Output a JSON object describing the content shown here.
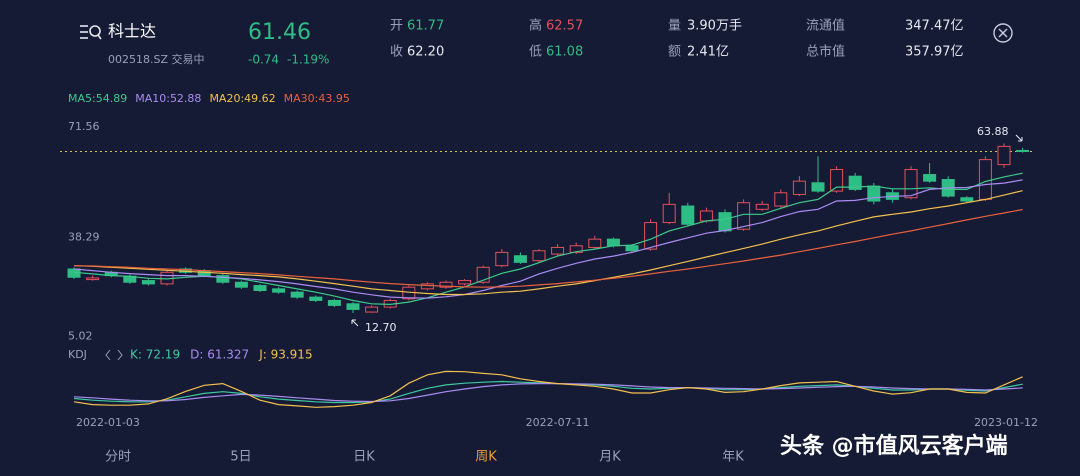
{
  "header": {
    "name": "科士达",
    "price": "61.46",
    "code": "002518.SZ 交易中",
    "change": "-0.74",
    "change_pct": "-1.19%",
    "quotes": [
      {
        "label": "开",
        "value": "61.77",
        "color": "#2ebd85"
      },
      {
        "label": "收",
        "value": "62.20",
        "color": "#e6e8f0"
      },
      {
        "label": "高",
        "value": "62.57",
        "color": "#e5505a"
      },
      {
        "label": "低",
        "value": "61.08",
        "color": "#2ebd85"
      },
      {
        "label": "量",
        "value": "3.90万手",
        "color": "#e6e8f0"
      },
      {
        "label": "额",
        "value": "2.41亿",
        "color": "#e6e8f0"
      },
      {
        "label": "流通值",
        "value": "347.47亿",
        "color": "#e6e8f0"
      },
      {
        "label": "总市值",
        "value": "357.97亿",
        "color": "#e6e8f0"
      }
    ]
  },
  "chart_data": {
    "type": "candlestick",
    "categories": [
      "2022-01-03",
      null,
      null,
      null,
      null,
      null,
      null,
      null,
      null,
      null,
      null,
      null,
      null,
      null,
      null,
      null,
      null,
      null,
      null,
      null,
      null,
      null,
      null,
      null,
      null,
      null,
      "2022-07-11",
      null,
      null,
      null,
      null,
      null,
      null,
      null,
      null,
      null,
      null,
      null,
      null,
      null,
      null,
      null,
      null,
      null,
      null,
      null,
      null,
      null,
      null,
      null,
      null,
      "2023-01-12"
    ],
    "open": [
      26,
      22.8,
      25,
      23.8,
      22.5,
      21.5,
      26,
      25.5,
      24,
      22,
      21,
      20,
      19,
      17.5,
      16.5,
      15.5,
      13,
      14.5,
      17,
      20,
      20.5,
      21.5,
      22,
      27,
      30,
      28.5,
      30.5,
      31,
      32.5,
      35,
      33,
      32,
      40,
      45,
      40.5,
      43,
      38,
      44,
      45,
      48.5,
      52,
      49.5,
      54,
      51,
      49,
      47.5,
      54.5,
      53,
      47.5,
      47,
      57.5,
      61.77
    ],
    "high": [
      26.5,
      24,
      25.5,
      24.3,
      23,
      25.5,
      26.5,
      26,
      24.5,
      22.5,
      21.5,
      20.5,
      19.5,
      18,
      17,
      16,
      15,
      17,
      21,
      22,
      22.5,
      23,
      27,
      32,
      31,
      32,
      33.5,
      34,
      36,
      35.5,
      33.5,
      41,
      49,
      46,
      44.5,
      44,
      47,
      46.5,
      50,
      54,
      60,
      57,
      55,
      52,
      50,
      57,
      58,
      54,
      48,
      60,
      63.88,
      62.57
    ],
    "low": [
      23,
      22.5,
      23.5,
      21.5,
      21,
      21,
      24.5,
      23.5,
      21.5,
      20,
      19,
      18.5,
      17,
      16,
      14.5,
      12.7,
      12.8,
      14,
      16.5,
      19.5,
      20,
      21,
      21.5,
      26.5,
      27.5,
      28,
      30,
      30.5,
      32,
      32.5,
      31,
      31.5,
      39.5,
      39,
      40,
      37,
      37.5,
      43.5,
      44.5,
      48,
      49,
      49,
      49.5,
      45.5,
      46,
      47,
      52,
      47.5,
      46,
      46.5,
      56.5,
      61.08
    ],
    "close": [
      23.5,
      23.3,
      24,
      22,
      21.5,
      25,
      25,
      24,
      22,
      20.5,
      19.5,
      19,
      17.5,
      16.5,
      15,
      13.8,
      14.5,
      16.5,
      20.5,
      21.5,
      22,
      22.5,
      26.5,
      31,
      28,
      31.5,
      32.5,
      33,
      35,
      33,
      31.5,
      40,
      45.5,
      39.5,
      43.5,
      37.5,
      46,
      45.5,
      49,
      52.5,
      49.5,
      56,
      50,
      46.5,
      47,
      56,
      52.5,
      48,
      46.5,
      59,
      63,
      61.46
    ],
    "ylim": [
      5.02,
      71.56
    ],
    "yticks": [
      71.56,
      38.29,
      5.02
    ],
    "up_color": "#e5505a",
    "down_color": "#2ebd85",
    "last_line_color": "#d8c24a",
    "max_label": "63.88",
    "min_label": "12.70",
    "ma_series": [
      {
        "name": "MA5:54.89",
        "color": "#3ec98a",
        "values": [
          25,
          24.5,
          24,
          23.8,
          23.2,
          23,
          23.5,
          23.8,
          23.5,
          23,
          22,
          21,
          20,
          19,
          17.8,
          16.5,
          15.5,
          15.3,
          16,
          17.3,
          19,
          20.6,
          22.6,
          24.7,
          26,
          27.9,
          29.9,
          31.2,
          32,
          33,
          33.2,
          35,
          37.5,
          39,
          40.5,
          41,
          42.5,
          42.5,
          44.3,
          46,
          47,
          50.7,
          50.7,
          51,
          50.2,
          50.2,
          50.5,
          50,
          50,
          52.4,
          53.8,
          54.89
        ]
      },
      {
        "name": "MA10:52.88",
        "color": "#a98cf0",
        "values": [
          26,
          25.5,
          25,
          24.6,
          24.3,
          24,
          24,
          23.8,
          23.5,
          23.2,
          22.7,
          22.2,
          21.5,
          20.7,
          20,
          19,
          18.2,
          17.5,
          17.3,
          17.2,
          17.6,
          18.3,
          19.5,
          21,
          22.3,
          24.5,
          26.2,
          27.7,
          29,
          29.9,
          31,
          32.5,
          34,
          35.4,
          36.8,
          37.6,
          38.8,
          40,
          41.8,
          43.3,
          44,
          46.5,
          46.7,
          47.5,
          47.9,
          48.1,
          50,
          50.5,
          50.6,
          51.5,
          51.9,
          52.88
        ]
      },
      {
        "name": "MA20:49.62",
        "color": "#f2c14e",
        "values": [
          27,
          26.8,
          26.5,
          26.2,
          25.9,
          25.6,
          25.3,
          25,
          24.7,
          24.3,
          24,
          23.6,
          23,
          22.3,
          21.6,
          20.8,
          20,
          19.5,
          19,
          18.6,
          18.3,
          18.3,
          18.5,
          19,
          19.3,
          20,
          20.8,
          21.5,
          22.5,
          23.5,
          24.5,
          25.7,
          27,
          28.3,
          29.6,
          30.9,
          32.2,
          33.5,
          35,
          36.3,
          37.5,
          39,
          40.4,
          41.7,
          42.5,
          43.2,
          44.2,
          45,
          46,
          47,
          48.3,
          49.62
        ]
      },
      {
        "name": "MA30:43.95",
        "color": "#e8613c",
        "values": [
          27,
          26.9,
          26.7,
          26.5,
          26.2,
          26,
          25.8,
          25.5,
          25.2,
          24.9,
          24.6,
          24.2,
          23.8,
          23.4,
          23,
          22.5,
          22,
          21.6,
          21.3,
          21,
          20.8,
          20.6,
          20.5,
          20.6,
          20.8,
          21.2,
          21.6,
          22.1,
          22.6,
          23.2,
          23.8,
          24.5,
          25.3,
          26,
          26.8,
          27.6,
          28.4,
          29.3,
          30.2,
          31.2,
          32.2,
          33.3,
          34.3,
          35.4,
          36.5,
          37.5,
          38.6,
          39.7,
          40.8,
          41.9,
          42.9,
          43.95
        ]
      }
    ],
    "kdj": {
      "title": "KDJ",
      "ylim": [
        -10,
        120
      ],
      "series": [
        {
          "name": "K: 72.19",
          "color": "#3ec9a0",
          "values": [
            30,
            25,
            22,
            20,
            20,
            25,
            35,
            45,
            50,
            45,
            35,
            28,
            24,
            20,
            18,
            18,
            20,
            28,
            45,
            60,
            70,
            75,
            78,
            80,
            78,
            76,
            74,
            72,
            70,
            66,
            60,
            58,
            60,
            62,
            60,
            56,
            56,
            58,
            62,
            66,
            68,
            70,
            66,
            60,
            55,
            55,
            58,
            58,
            54,
            52,
            62,
            72.19
          ]
        },
        {
          "name": "D: 61.327",
          "color": "#a98cf0",
          "values": [
            35,
            32,
            28,
            25,
            23,
            23,
            27,
            33,
            38,
            42,
            40,
            36,
            32,
            28,
            24,
            22,
            21,
            23,
            30,
            40,
            50,
            58,
            65,
            70,
            73,
            74,
            74,
            73,
            72,
            70,
            67,
            64,
            62,
            62,
            61,
            60,
            59,
            58,
            59,
            61,
            63,
            65,
            66,
            64,
            61,
            59,
            58,
            58,
            57,
            55,
            58,
            61.327
          ]
        },
        {
          "name": "J: 93.915",
          "color": "#f2c14e",
          "values": [
            20,
            12,
            10,
            10,
            14,
            29,
            51,
            69,
            74,
            51,
            25,
            12,
            8,
            4,
            6,
            10,
            18,
            38,
            75,
            100,
            110,
            109,
            104,
            100,
            88,
            80,
            74,
            70,
            66,
            58,
            46,
            46,
            56,
            62,
            58,
            48,
            50,
            58,
            68,
            76,
            78,
            80,
            66,
            52,
            43,
            47,
            58,
            58,
            48,
            46,
            70,
            93.915
          ]
        }
      ]
    }
  },
  "tabs": [
    {
      "label": "分时",
      "active": false
    },
    {
      "label": "5日",
      "active": false
    },
    {
      "label": "日K",
      "active": false
    },
    {
      "label": "周K",
      "active": true
    },
    {
      "label": "月K",
      "active": false
    },
    {
      "label": "年K",
      "active": false
    }
  ],
  "watermark": "头条 @市值风云客户端"
}
